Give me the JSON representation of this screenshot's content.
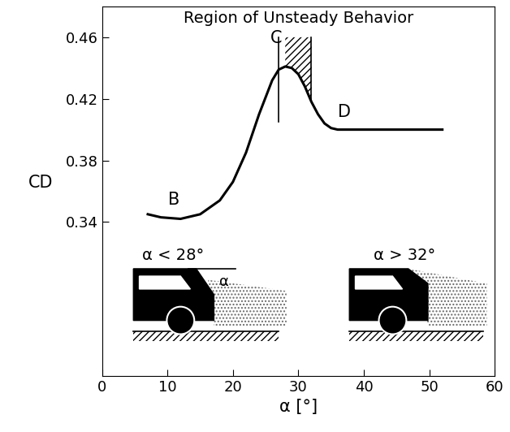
{
  "chart_data": {
    "type": "line",
    "title": "Region of Unsteady Behavior",
    "x_label": "α [°]",
    "y_label": "CD",
    "x": [
      7,
      9,
      12,
      15,
      18,
      20,
      22,
      24,
      26,
      27,
      28,
      29,
      30,
      31,
      32,
      33,
      34,
      35,
      36,
      40,
      45,
      52
    ],
    "values": [
      0.345,
      0.343,
      0.342,
      0.345,
      0.354,
      0.366,
      0.385,
      0.41,
      0.432,
      0.439,
      0.441,
      0.44,
      0.436,
      0.428,
      0.418,
      0.41,
      0.404,
      0.401,
      0.4,
      0.4,
      0.4,
      0.4
    ],
    "color": "#000000",
    "xlim": [
      0,
      60
    ],
    "xticks": [
      0,
      10,
      20,
      30,
      40,
      50,
      60
    ],
    "ylim": [
      0.24,
      0.48
    ],
    "yticks": [
      0.34,
      0.38,
      0.42,
      0.46
    ],
    "grid": false,
    "annotations": [
      {
        "text": "B",
        "x": 11,
        "y": 0.342
      },
      {
        "text": "C",
        "x": 28,
        "y": 0.441
      },
      {
        "text": "D",
        "x": 36,
        "y": 0.4
      }
    ],
    "unsteady_region": {
      "x": [
        28,
        32
      ],
      "top": 0.46
    },
    "unsteady_onset": {
      "x": 27,
      "y": [
        0.405,
        0.46
      ]
    },
    "inset_labels": [
      "α < 28°",
      "α",
      "α > 32°"
    ]
  }
}
